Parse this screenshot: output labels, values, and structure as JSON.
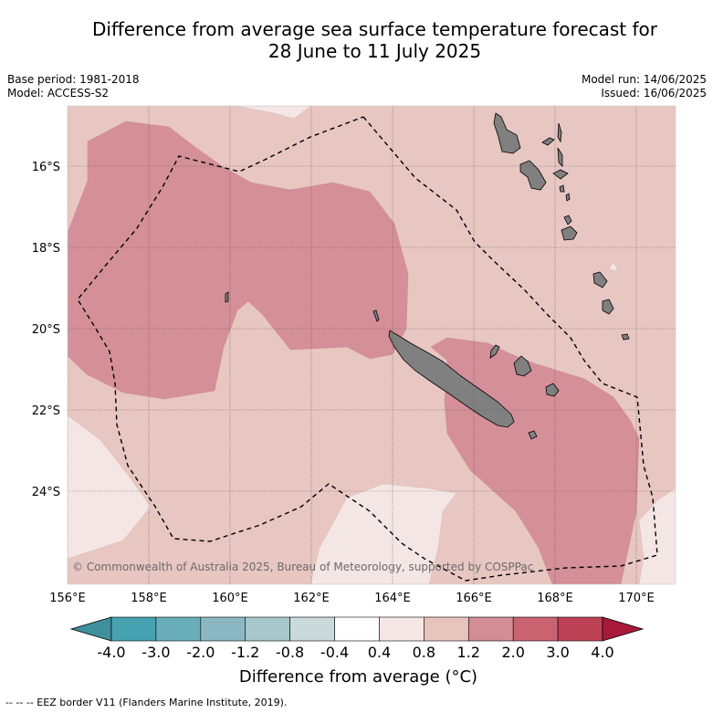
{
  "title_line1": "Difference from average sea surface temperature forecast for",
  "title_line2": "28 June to 11 July 2025",
  "base_period": "Base period: 1981-2018",
  "model": "Model: ACCESS-S2",
  "model_run": "Model run: 14/06/2025",
  "issued": "Issued: 16/06/2025",
  "copyright": "© Commonwealth of Australia 2025, Bureau of Meteorology, supported by COSPPac",
  "lat_labels": [
    "16°S",
    "18°S",
    "20°S",
    "22°S",
    "24°S"
  ],
  "lon_labels": [
    "156°E",
    "158°E",
    "160°E",
    "162°E",
    "164°E",
    "166°E",
    "168°E",
    "170°E"
  ],
  "colorbar": {
    "ticks": [
      "-4.0",
      "-3.0",
      "-2.0",
      "-1.2",
      "-0.8",
      "-0.4",
      "0.4",
      "0.8",
      "1.2",
      "2.0",
      "3.0",
      "4.0"
    ],
    "colors": [
      "#3f8f9c",
      "#46a2b0",
      "#6aaeba",
      "#8bb8c3",
      "#a8c7cc",
      "#c9d9dc",
      "#ffffff",
      "#f6e6e4",
      "#e8c4bf",
      "#d38d96",
      "#c9636f",
      "#bd4154",
      "#a8193a"
    ],
    "label": "Difference from average (°C)"
  },
  "legend_footer": "-- -- -- EEZ border V11 (Flanders Marine Institute, 2019).",
  "field_colors": {
    "light": "#f4e6e4",
    "mid": "#e8c6c1",
    "dark": "#d58f98",
    "land": "#808080"
  }
}
